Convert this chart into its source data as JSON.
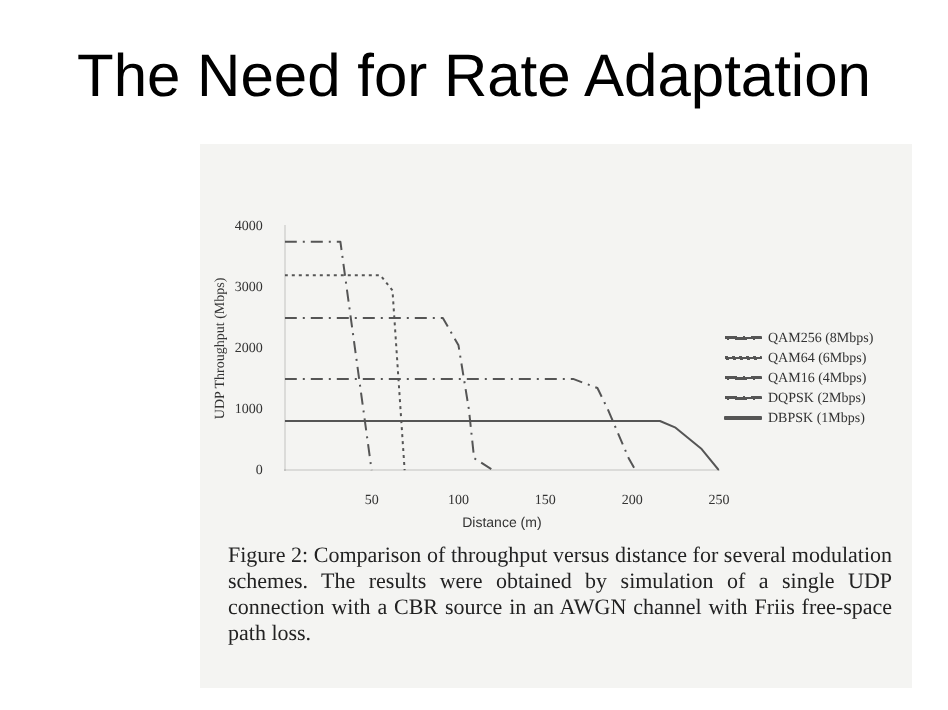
{
  "chart_data": {
    "type": "line",
    "title": "The Need for Rate Adaptation",
    "xlabel": "Distance (m)",
    "ylabel": "UDP Throughput (Mbps)",
    "xlim": [
      0,
      250
    ],
    "xticks": [
      {
        "value": 0,
        "label": null
      },
      50,
      100,
      150,
      200,
      250
    ],
    "ylim": [
      0,
      4000
    ],
    "yticks": [
      0,
      1000,
      2000,
      3000,
      4000
    ],
    "grid": false,
    "legend": "right",
    "marker": "none",
    "series": [
      {
        "name": "QAM256 (8Mbps)",
        "color": "#555555",
        "line_style": "dashed",
        "x": [
          0,
          32,
          50
        ],
        "values": [
          3750,
          3750,
          0
        ]
      },
      {
        "name": "QAM64 (6Mbps)",
        "color": "#555555",
        "line_style": "dotted",
        "x": [
          0,
          55,
          62,
          69
        ],
        "values": [
          3200,
          3200,
          2950,
          0
        ]
      },
      {
        "name": "QAM16 (4Mbps)",
        "color": "#555555",
        "line_style": "dashed",
        "x": [
          0,
          91,
          100,
          106,
          109,
          120
        ],
        "values": [
          2500,
          2500,
          2050,
          1000,
          200,
          0
        ]
      },
      {
        "name": "DQPSK (2Mbps)",
        "color": "#555555",
        "line_style": "dashed",
        "x": [
          0,
          166,
          180,
          186,
          198,
          202
        ],
        "values": [
          1500,
          1500,
          1350,
          1000,
          200,
          0
        ]
      },
      {
        "name": "DBPSK (1Mbps)",
        "color": "#555555",
        "line_style": "solid",
        "x": [
          0,
          216,
          225,
          240,
          250
        ],
        "values": [
          810,
          810,
          700,
          350,
          0
        ]
      }
    ],
    "annotations": [
      "Figure 2:  Comparison of throughput versus distance for several modulation schemes. The results were obtained by simulation of a single UDP connection with a CBR source in an AWGN channel with Friis free-space path loss."
    ]
  }
}
